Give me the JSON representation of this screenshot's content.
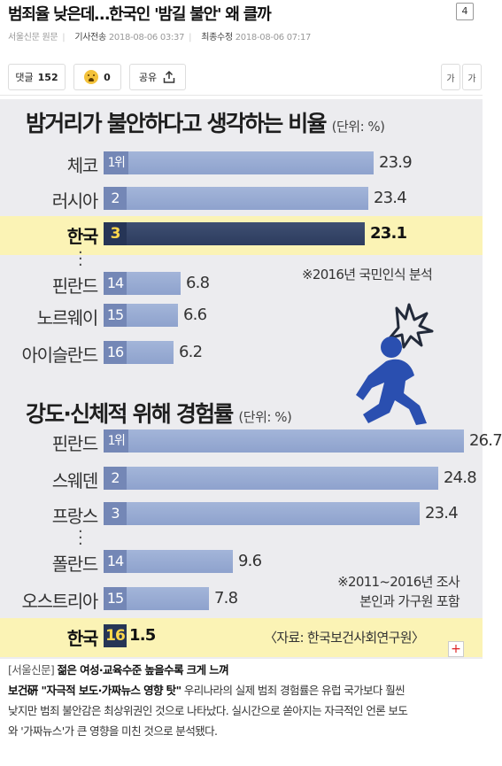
{
  "article": {
    "title": "범죄율 낮은데…한국인 '밤길 불안' 왜 클까",
    "count_badge": "4",
    "source": "서울신문 원문",
    "sent_label": "기사전송",
    "sent_time": "2018-08-06 03:37",
    "updated_label": "최종수정",
    "updated_time": "2018-08-06 07:17"
  },
  "toolbar": {
    "comment_label": "댓글",
    "comment_count": "152",
    "reaction_count": "0",
    "share_label": "공유",
    "font_small": "가",
    "font_large": "가"
  },
  "chart_data": [
    {
      "type": "bar",
      "title": "밤거리가 불안하다고 생각하는 비율",
      "unit": "(단위: %)",
      "categories": [
        "체코",
        "러시아",
        "한국",
        "핀란드",
        "노르웨이",
        "아이슬란드"
      ],
      "ranks": [
        "1위",
        "2",
        "3",
        "14",
        "15",
        "16"
      ],
      "values": [
        23.9,
        23.4,
        23.1,
        6.8,
        6.6,
        6.2
      ],
      "value_labels": [
        "23.9",
        "23.4",
        "23.1",
        "6.8",
        "6.6",
        "6.2"
      ],
      "highlight": "한국",
      "note": "※2016년 국민인식 분석",
      "xlim": [
        0,
        23.9
      ]
    },
    {
      "type": "bar",
      "title": "강도·신체적 위해 경험률",
      "unit": "(단위: %)",
      "categories": [
        "핀란드",
        "스웨덴",
        "프랑스",
        "폴란드",
        "오스트리아",
        "한국"
      ],
      "ranks": [
        "1위",
        "2",
        "3",
        "14",
        "15",
        "16"
      ],
      "values": [
        26.7,
        24.8,
        23.4,
        9.6,
        7.8,
        1.5
      ],
      "value_labels": [
        "26.7",
        "24.8",
        "23.4",
        "9.6",
        "7.8",
        "1.5"
      ],
      "highlight": "한국",
      "notes": [
        "※2011~2016년 조사",
        "본인과 가구원 포함",
        "〈자료: 한국보건사회연구원〉"
      ],
      "xlim": [
        0,
        26.7
      ]
    }
  ],
  "colors": {
    "bar": "#97a9d2",
    "bar_highlight": "#2d3c5e",
    "rank_box": "#7487b6",
    "highlight_band": "#fbf3b5",
    "figure_icon": "#2a4fb0",
    "impact_icon": "#222a3a"
  },
  "icons": {
    "share": "share-upload-icon",
    "reaction": "face-emoji-icon",
    "figure": "running-person-icon",
    "impact": "impact-burst-icon",
    "more": "plus-icon"
  },
  "more_button": "+",
  "body": {
    "source_tag": "[서울신문]",
    "subhead": "젊은 여성·교육수준 높을수록 크게 느껴",
    "lead_bold": "보건硏 \"자극적 보도·가짜뉴스 영향 탓\"",
    "line2_rest": " 우리나라의 실제 범죄 경험률은 유럽 국가보다 훨씬",
    "line3": "낮지만 범죄 불안감은 최상위권인 것으로 나타났다. 실시간으로 쏟아지는 자극적인 언론 보도",
    "line4": "와 '가짜뉴스'가 큰 영향을 미친 것으로 분석됐다."
  }
}
